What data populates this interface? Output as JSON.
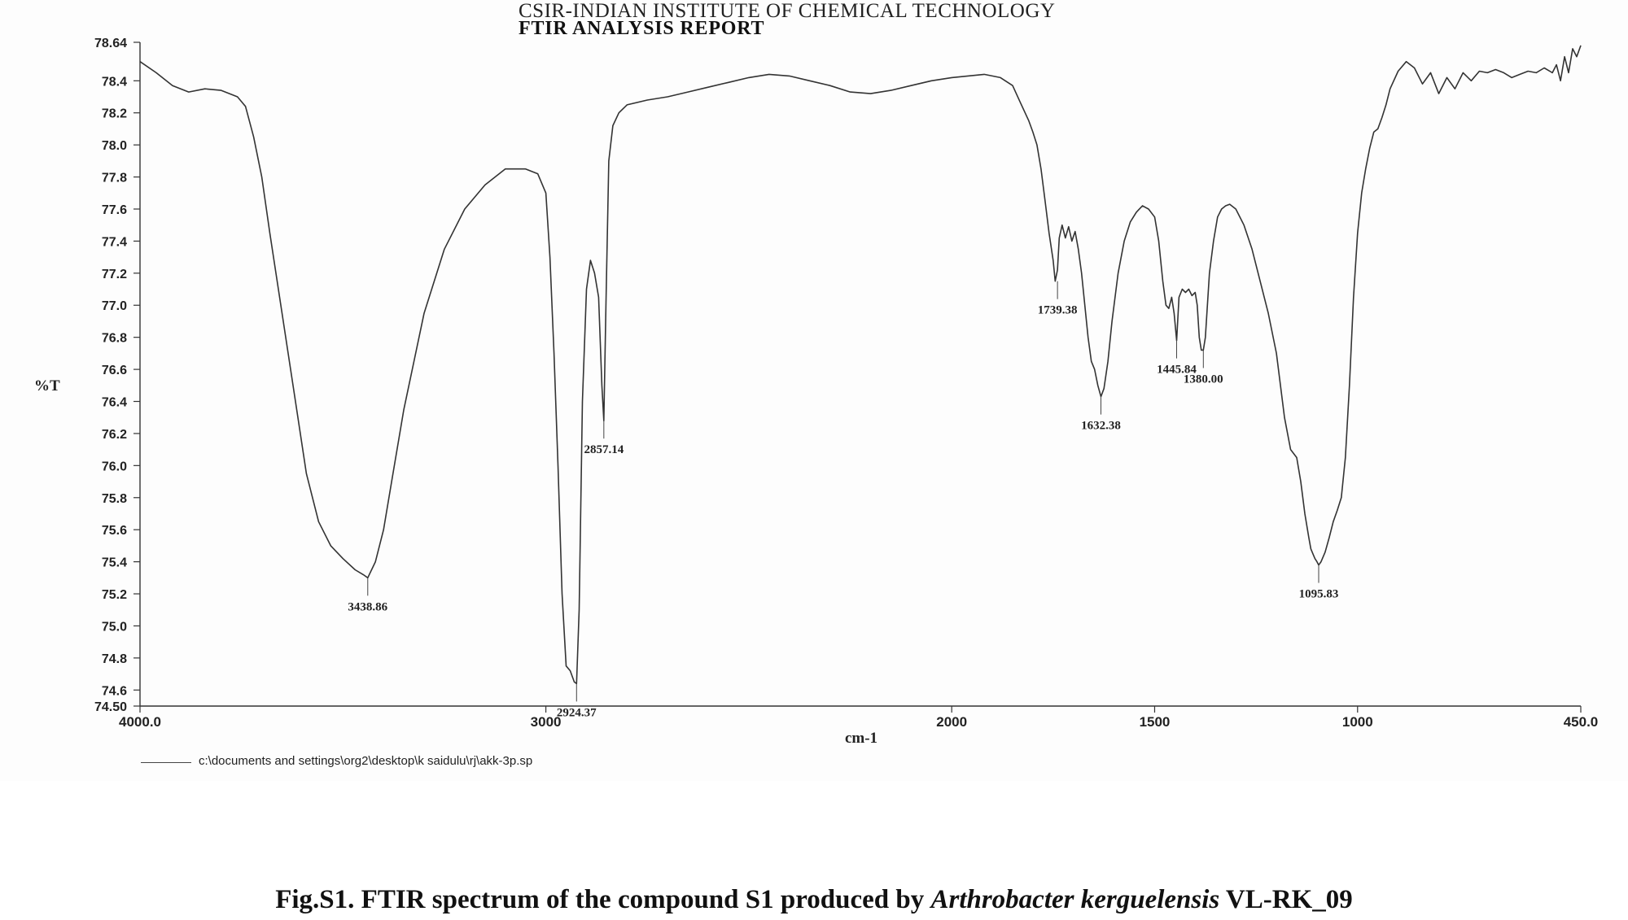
{
  "header": {
    "institute": "CSIR-INDIAN INSTITUTE OF CHEMICAL TECHNOLOGY",
    "report": "FTIR ANALYSIS REPORT"
  },
  "file_path": "c:\\documents and settings\\org2\\desktop\\k saidulu\\rj\\akk-3p.sp",
  "caption": {
    "prefix": "Fig.S1. FTIR spectrum of the compound S1 produced by ",
    "organism": "Arthrobacter kerguelensis",
    "suffix": " VL-RK_09"
  },
  "chart_data": {
    "type": "line",
    "title": "FTIR ANALYSIS REPORT",
    "xlabel": "cm-1",
    "ylabel": "%T",
    "xlim": [
      4000.0,
      450.0
    ],
    "ylim": [
      74.5,
      78.64
    ],
    "x_reversed": true,
    "grid": false,
    "x_ticks": [
      4000.0,
      3000,
      2000,
      1500,
      1000,
      450.0
    ],
    "x_tick_labels": [
      "4000.0",
      "3000",
      "2000",
      "1500",
      "1000",
      "450.0"
    ],
    "y_ticks": [
      78.64,
      78.4,
      78.2,
      78.0,
      77.8,
      77.6,
      77.4,
      77.2,
      77.0,
      76.8,
      76.6,
      76.4,
      76.2,
      76.0,
      75.8,
      75.6,
      75.4,
      75.2,
      75.0,
      74.8,
      74.6,
      74.5
    ],
    "y_tick_labels": [
      "78.64",
      "78.4",
      "78.2",
      "78.0",
      "77.8",
      "77.6",
      "77.4",
      "77.2",
      "77.0",
      "76.8",
      "76.6",
      "76.4",
      "76.2",
      "76.0",
      "75.8",
      "75.6",
      "75.4",
      "75.2",
      "75.0",
      "74.8",
      "74.6",
      "74.50"
    ],
    "series": [
      {
        "x": [
          4000,
          3960,
          3920,
          3880,
          3840,
          3800,
          3760,
          3740,
          3720,
          3700,
          3680,
          3650,
          3620,
          3590,
          3560,
          3530,
          3500,
          3470,
          3450,
          3438.86,
          3420,
          3400,
          3380,
          3350,
          3300,
          3250,
          3200,
          3150,
          3100,
          3050,
          3020,
          3000,
          2990,
          2980,
          2970,
          2960,
          2950,
          2940,
          2930,
          2924.37,
          2918,
          2910,
          2900,
          2890,
          2880,
          2870,
          2862,
          2857.14,
          2852,
          2845,
          2835,
          2820,
          2800,
          2750,
          2700,
          2650,
          2600,
          2550,
          2500,
          2450,
          2400,
          2350,
          2300,
          2250,
          2200,
          2150,
          2100,
          2050,
          2000,
          1960,
          1920,
          1880,
          1850,
          1830,
          1810,
          1800,
          1790,
          1780,
          1770,
          1760,
          1750,
          1745,
          1739.38,
          1735,
          1728,
          1720,
          1712,
          1704,
          1696,
          1688,
          1680,
          1672,
          1664,
          1656,
          1648,
          1640,
          1632.38,
          1625,
          1615,
          1605,
          1590,
          1575,
          1560,
          1545,
          1530,
          1515,
          1500,
          1490,
          1480,
          1472,
          1465,
          1458,
          1452,
          1445.84,
          1440,
          1432,
          1424,
          1416,
          1408,
          1400,
          1395,
          1390,
          1385,
          1380.0,
          1375,
          1370,
          1365,
          1355,
          1345,
          1335,
          1325,
          1315,
          1300,
          1280,
          1260,
          1240,
          1220,
          1200,
          1180,
          1165,
          1150,
          1140,
          1130,
          1120,
          1115,
          1110,
          1105,
          1100,
          1095.83,
          1090,
          1080,
          1070,
          1060,
          1050,
          1040,
          1030,
          1020,
          1010,
          1000,
          990,
          980,
          970,
          960,
          950,
          940,
          930,
          920,
          900,
          880,
          860,
          840,
          820,
          800,
          780,
          760,
          740,
          720,
          700,
          680,
          660,
          640,
          620,
          600,
          580,
          560,
          540,
          520,
          510,
          500,
          490,
          480,
          470,
          460,
          450
        ],
        "y": [
          78.52,
          78.45,
          78.37,
          78.33,
          78.35,
          78.34,
          78.3,
          78.24,
          78.05,
          77.8,
          77.45,
          76.95,
          76.45,
          75.95,
          75.65,
          75.5,
          75.42,
          75.35,
          75.32,
          75.3,
          75.4,
          75.6,
          75.9,
          76.35,
          76.95,
          77.35,
          77.6,
          77.75,
          77.85,
          77.85,
          77.82,
          77.7,
          77.3,
          76.7,
          76.0,
          75.2,
          74.75,
          74.72,
          74.65,
          74.64,
          75.1,
          76.4,
          77.1,
          77.28,
          77.2,
          77.05,
          76.5,
          76.28,
          77.0,
          77.9,
          78.12,
          78.2,
          78.25,
          78.28,
          78.3,
          78.33,
          78.36,
          78.39,
          78.42,
          78.44,
          78.43,
          78.4,
          78.37,
          78.33,
          78.32,
          78.34,
          78.37,
          78.4,
          78.42,
          78.43,
          78.44,
          78.42,
          78.37,
          78.26,
          78.15,
          78.08,
          78.0,
          77.85,
          77.65,
          77.45,
          77.28,
          77.15,
          77.22,
          77.42,
          77.5,
          77.42,
          77.49,
          77.4,
          77.46,
          77.35,
          77.2,
          77.0,
          76.8,
          76.65,
          76.6,
          76.5,
          76.43,
          76.48,
          76.65,
          76.9,
          77.2,
          77.4,
          77.52,
          77.58,
          77.62,
          77.6,
          77.55,
          77.4,
          77.15,
          77.0,
          76.98,
          77.05,
          76.95,
          76.78,
          77.05,
          77.1,
          77.08,
          77.1,
          77.06,
          77.08,
          77.0,
          76.8,
          76.72,
          76.72,
          76.8,
          77.0,
          77.2,
          77.4,
          77.55,
          77.6,
          77.62,
          77.63,
          77.6,
          77.5,
          77.35,
          77.15,
          76.95,
          76.7,
          76.3,
          76.1,
          76.05,
          75.9,
          75.7,
          75.55,
          75.48,
          75.45,
          75.42,
          75.4,
          75.38,
          75.4,
          75.46,
          75.55,
          75.65,
          75.72,
          75.8,
          76.05,
          76.5,
          77.05,
          77.45,
          77.7,
          77.85,
          77.98,
          78.08,
          78.1,
          78.17,
          78.25,
          78.35,
          78.46,
          78.52,
          78.48,
          78.38,
          78.45,
          78.32,
          78.42,
          78.35,
          78.45,
          78.4,
          78.46,
          78.45,
          78.47,
          78.45,
          78.42,
          78.44,
          78.46,
          78.45,
          78.48,
          78.45,
          78.5,
          78.4,
          78.55,
          78.45,
          78.6,
          78.55,
          78.62
        ]
      }
    ],
    "annotations": [
      {
        "x": 3438.86,
        "y": 75.3,
        "label": "3438.86"
      },
      {
        "x": 2924.37,
        "y": 74.64,
        "label": "2924.37"
      },
      {
        "x": 2857.14,
        "y": 76.28,
        "label": "2857.14"
      },
      {
        "x": 1739.38,
        "y": 77.15,
        "label": "1739.38"
      },
      {
        "x": 1632.38,
        "y": 76.43,
        "label": "1632.38"
      },
      {
        "x": 1445.84,
        "y": 76.78,
        "label": "1445.84"
      },
      {
        "x": 1380.0,
        "y": 76.72,
        "label": "1380.00"
      },
      {
        "x": 1095.83,
        "y": 75.38,
        "label": "1095.83"
      }
    ]
  }
}
